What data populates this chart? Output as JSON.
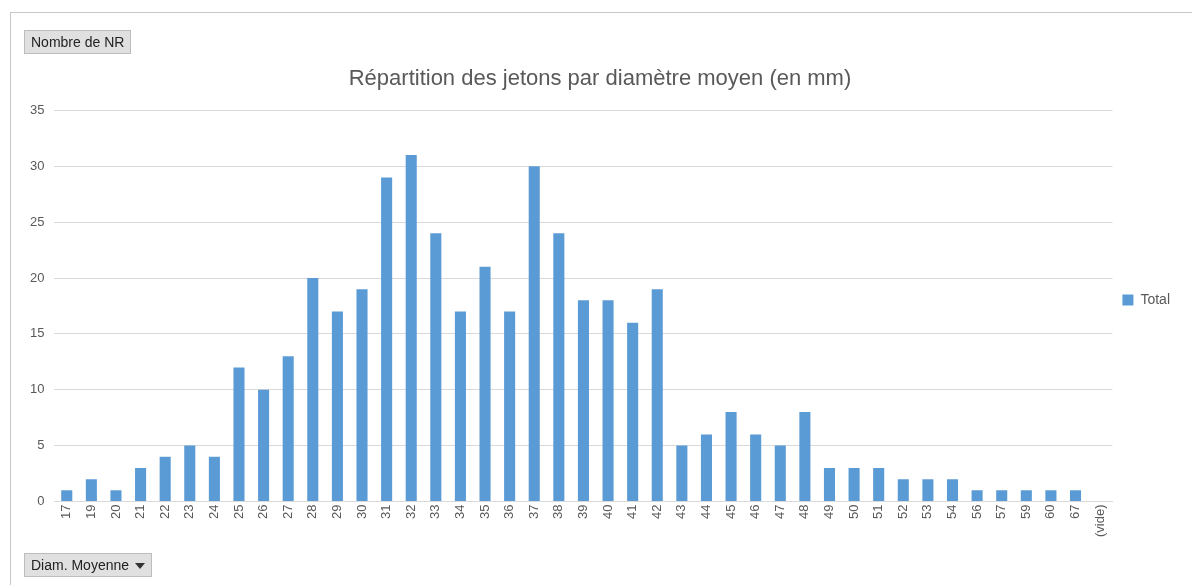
{
  "chart_data": {
    "type": "bar",
    "title": "Répartition des jetons par diamètre moyen (en mm)",
    "categories": [
      "17",
      "19",
      "20",
      "21",
      "22",
      "23",
      "24",
      "25",
      "26",
      "27",
      "28",
      "29",
      "30",
      "31",
      "32",
      "33",
      "34",
      "35",
      "36",
      "37",
      "38",
      "39",
      "40",
      "41",
      "42",
      "43",
      "44",
      "45",
      "46",
      "47",
      "48",
      "49",
      "50",
      "51",
      "52",
      "53",
      "54",
      "56",
      "57",
      "59",
      "60",
      "67",
      "(vide)"
    ],
    "series": [
      {
        "name": "Total",
        "color": "#5b9bd5",
        "values": [
          1,
          2,
          1,
          3,
          4,
          5,
          4,
          12,
          10,
          13,
          20,
          17,
          19,
          29,
          31,
          24,
          17,
          21,
          17,
          30,
          24,
          18,
          18,
          16,
          19,
          5,
          6,
          8,
          6,
          5,
          8,
          3,
          3,
          3,
          2,
          2,
          2,
          1,
          1,
          1,
          1,
          1,
          null
        ]
      }
    ],
    "ylim": [
      0,
      35
    ],
    "yticks": [
      0,
      5,
      10,
      15,
      20,
      25,
      30,
      35
    ],
    "grid": "y",
    "legend": "right",
    "annotations": [
      "Nombre de NR",
      "Diam. Moyenne"
    ]
  }
}
